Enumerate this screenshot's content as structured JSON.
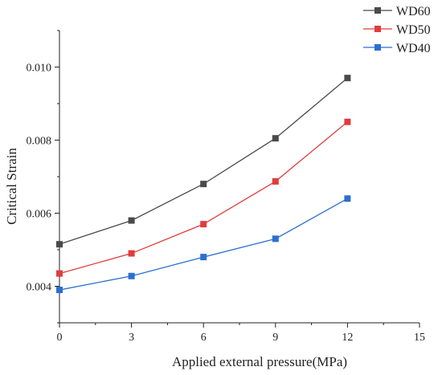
{
  "chart_data": {
    "type": "line",
    "xlabel": "Applied external pressure(MPa)",
    "ylabel": "Critical Strain",
    "xlim": [
      0,
      15
    ],
    "ylim": [
      0.003,
      0.011
    ],
    "xticks": [
      0,
      3,
      6,
      9,
      12,
      15
    ],
    "yticks": [
      0.004,
      0.006,
      0.008,
      0.01
    ],
    "xtick_labels": [
      "0",
      "3",
      "6",
      "9",
      "12",
      "15"
    ],
    "ytick_labels": [
      "0.004",
      "0.006",
      "0.008",
      "0.010"
    ],
    "grid": false,
    "legend_position": "top-right",
    "x": [
      0,
      3,
      6,
      9,
      12
    ],
    "series": [
      {
        "name": "WD60",
        "color": "#4a4a4a",
        "values": [
          0.00515,
          0.0058,
          0.0068,
          0.00805,
          0.0097
        ]
      },
      {
        "name": "WD50",
        "color": "#e03c3c",
        "values": [
          0.00435,
          0.0049,
          0.0057,
          0.00687,
          0.0085
        ]
      },
      {
        "name": "WD40",
        "color": "#2b6fd1",
        "values": [
          0.0039,
          0.00428,
          0.0048,
          0.0053,
          0.0064
        ]
      }
    ]
  }
}
